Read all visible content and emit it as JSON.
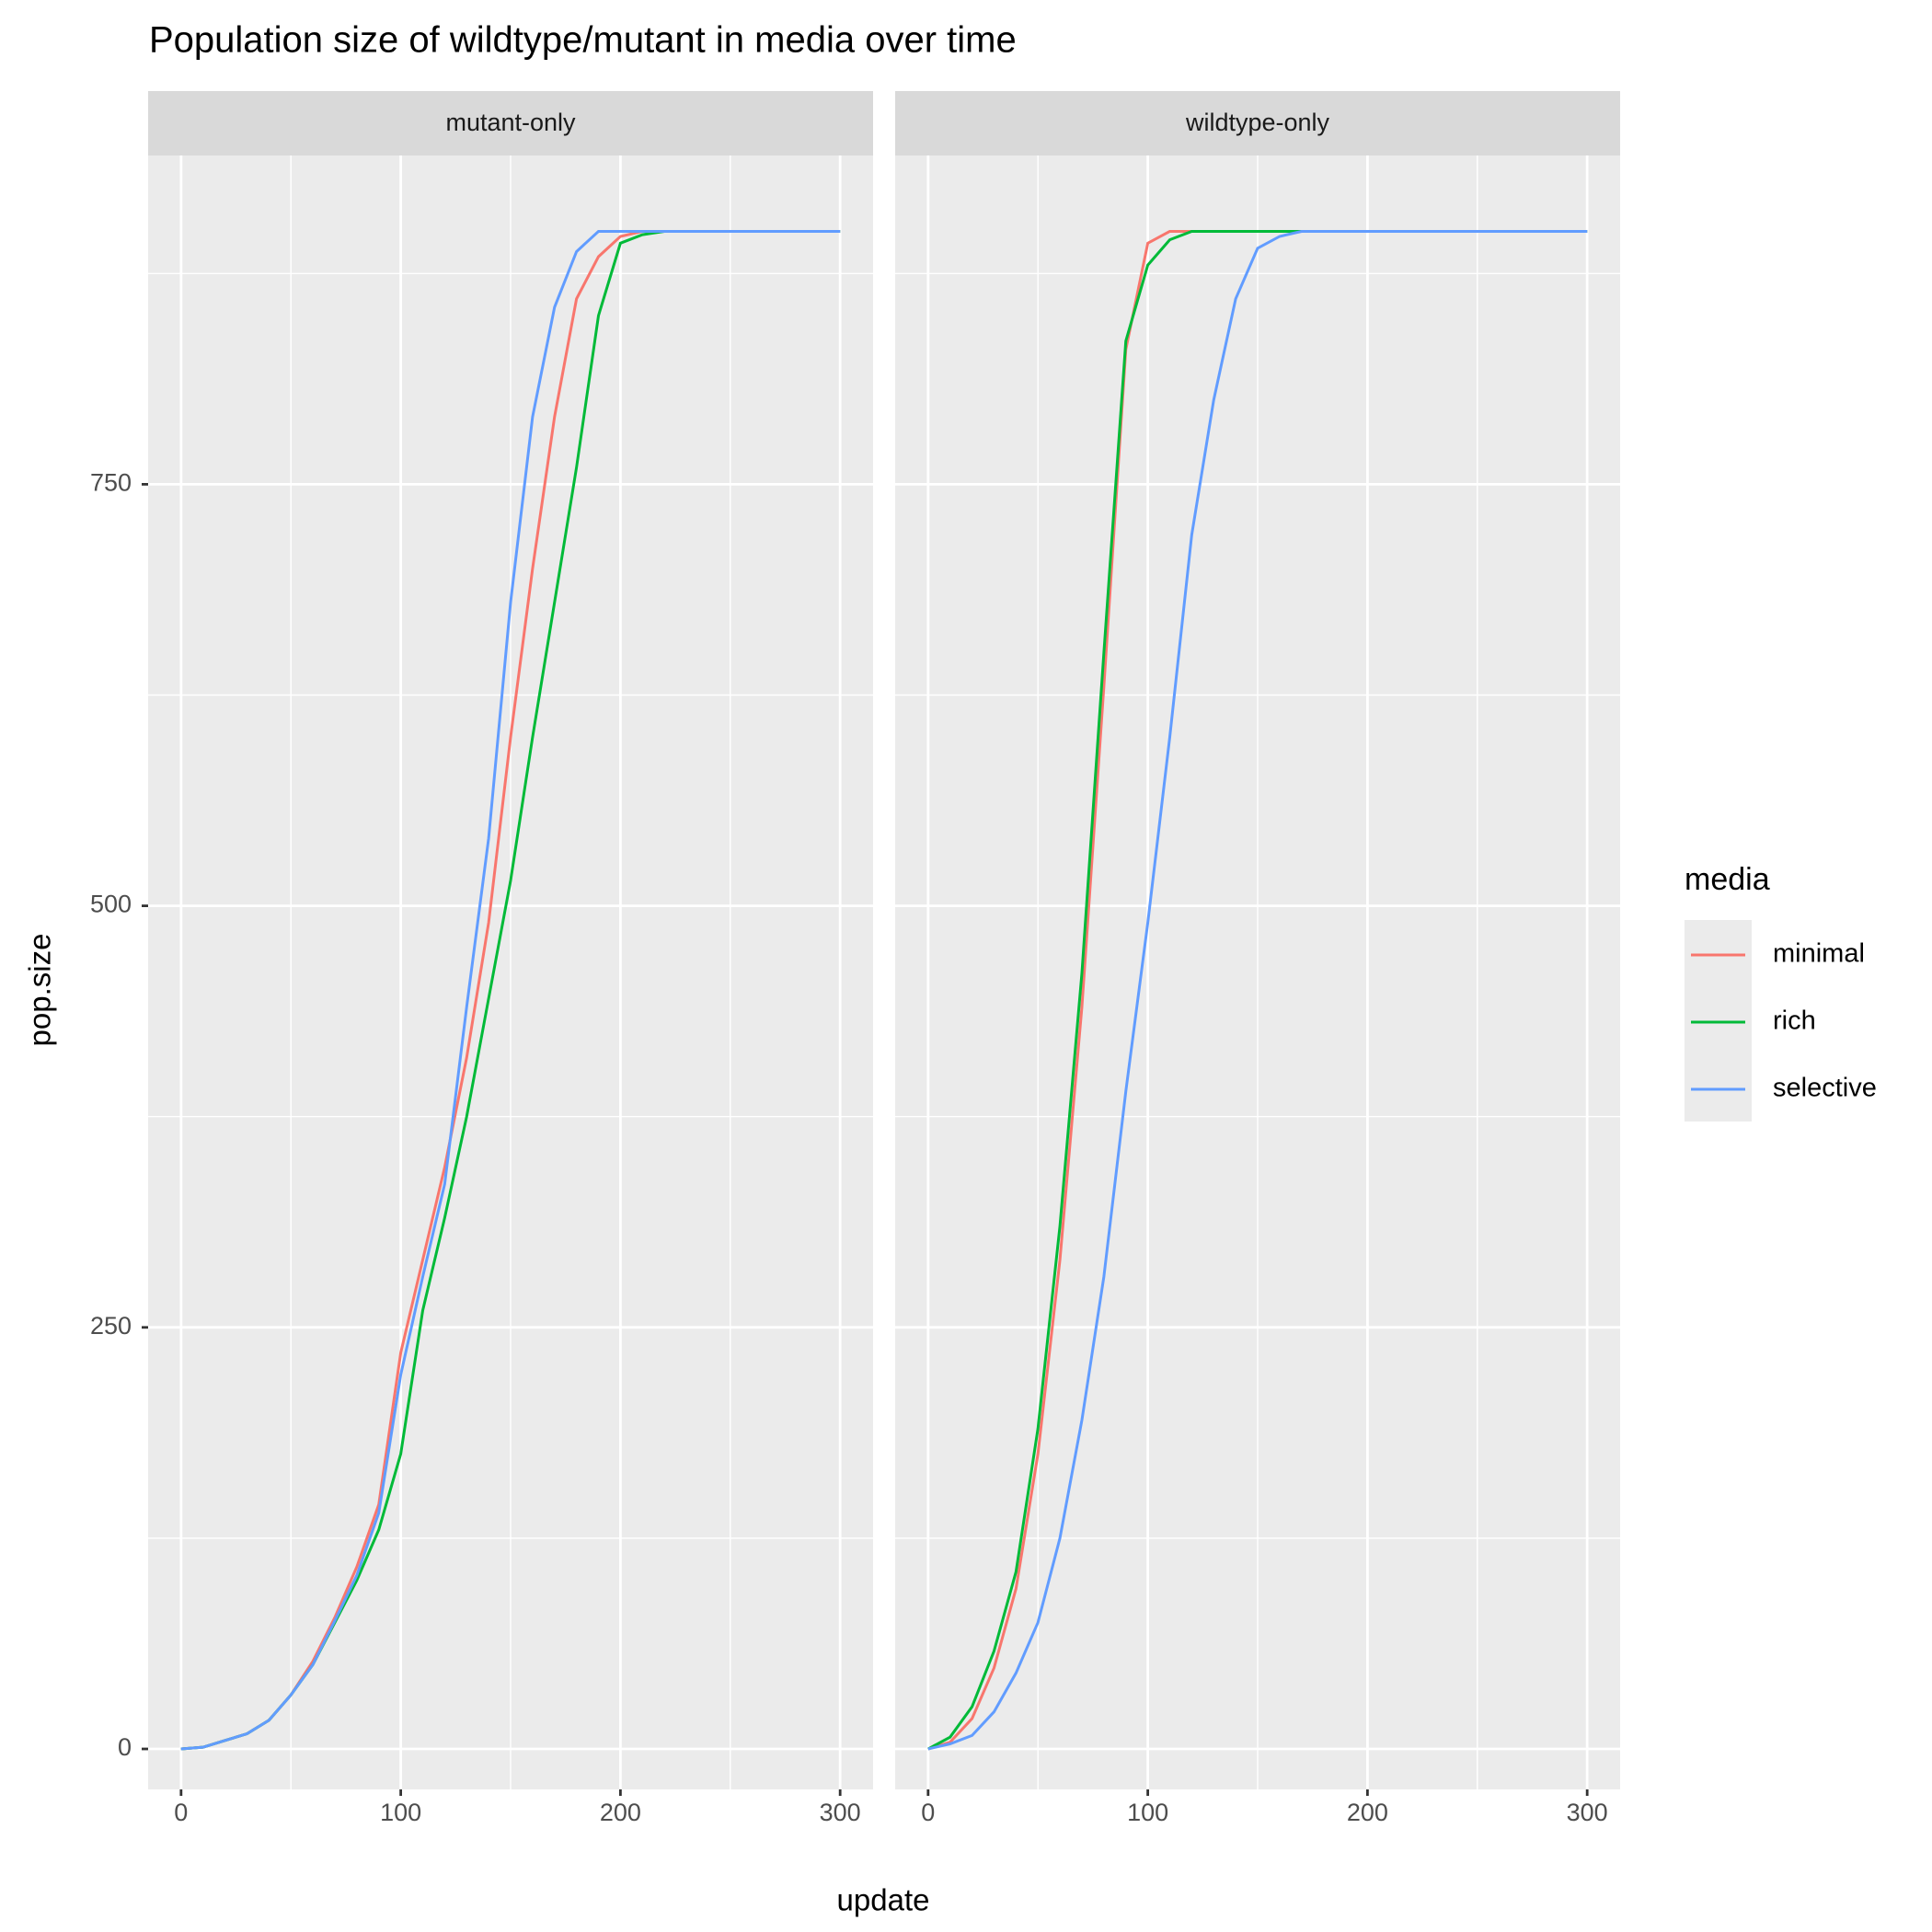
{
  "chart_data": {
    "type": "line",
    "title": "Population size of wildtype/mutant in media over time",
    "x_label": "update",
    "y_label": "pop.size",
    "legend_title": "media",
    "legend_position": "right",
    "grid": true,
    "xlim": [
      -15,
      315
    ],
    "xticks": [
      0,
      100,
      200,
      300
    ],
    "x_minor_ticks": [
      50,
      150,
      250
    ],
    "ylim": [
      -24,
      945
    ],
    "yticks": [
      0,
      250,
      500,
      750
    ],
    "y_minor_ticks": [
      125,
      375,
      625,
      875
    ],
    "x": [
      0,
      10,
      20,
      30,
      40,
      50,
      60,
      70,
      80,
      90,
      100,
      110,
      120,
      130,
      140,
      150,
      160,
      170,
      180,
      190,
      200,
      210,
      220,
      230,
      240,
      250,
      260,
      270,
      280,
      290,
      300
    ],
    "series": [
      {
        "name": "minimal",
        "color": "#f8766d"
      },
      {
        "name": "rich",
        "color": "#00ba38"
      },
      {
        "name": "selective",
        "color": "#619cff"
      }
    ],
    "facets": [
      {
        "label": "mutant-only",
        "values": [
          [
            0,
            1,
            5,
            9,
            17,
            32,
            52,
            78,
            108,
            145,
            235,
            290,
            345,
            410,
            490,
            600,
            700,
            790,
            860,
            885,
            897,
            900,
            900,
            900,
            900,
            900,
            900,
            900,
            900,
            900,
            900
          ],
          [
            0,
            1,
            5,
            9,
            17,
            32,
            50,
            75,
            100,
            130,
            175,
            260,
            315,
            375,
            445,
            515,
            600,
            680,
            760,
            850,
            893,
            898,
            900,
            900,
            900,
            900,
            900,
            900,
            900,
            900,
            900
          ],
          [
            0,
            1,
            5,
            9,
            17,
            32,
            50,
            76,
            103,
            140,
            222,
            280,
            335,
            440,
            540,
            680,
            790,
            855,
            888,
            900,
            900,
            900,
            900,
            900,
            900,
            900,
            900,
            900,
            900,
            900,
            900
          ]
        ]
      },
      {
        "label": "wildtype-only",
        "values": [
          [
            0,
            4,
            18,
            48,
            95,
            175,
            290,
            440,
            630,
            830,
            893,
            900,
            900,
            900,
            900,
            900,
            900,
            900,
            900,
            900,
            900,
            900,
            900,
            900,
            900,
            900,
            900,
            900,
            900,
            900,
            900
          ],
          [
            0,
            7,
            25,
            58,
            105,
            190,
            310,
            460,
            650,
            835,
            880,
            895,
            900,
            900,
            900,
            900,
            900,
            900,
            900,
            900,
            900,
            900,
            900,
            900,
            900,
            900,
            900,
            900,
            900,
            900,
            900
          ],
          [
            0,
            3,
            8,
            22,
            45,
            75,
            125,
            195,
            280,
            390,
            490,
            600,
            720,
            800,
            860,
            890,
            897,
            900,
            900,
            900,
            900,
            900,
            900,
            900,
            900,
            900,
            900,
            900,
            900,
            900,
            900
          ]
        ]
      }
    ]
  }
}
